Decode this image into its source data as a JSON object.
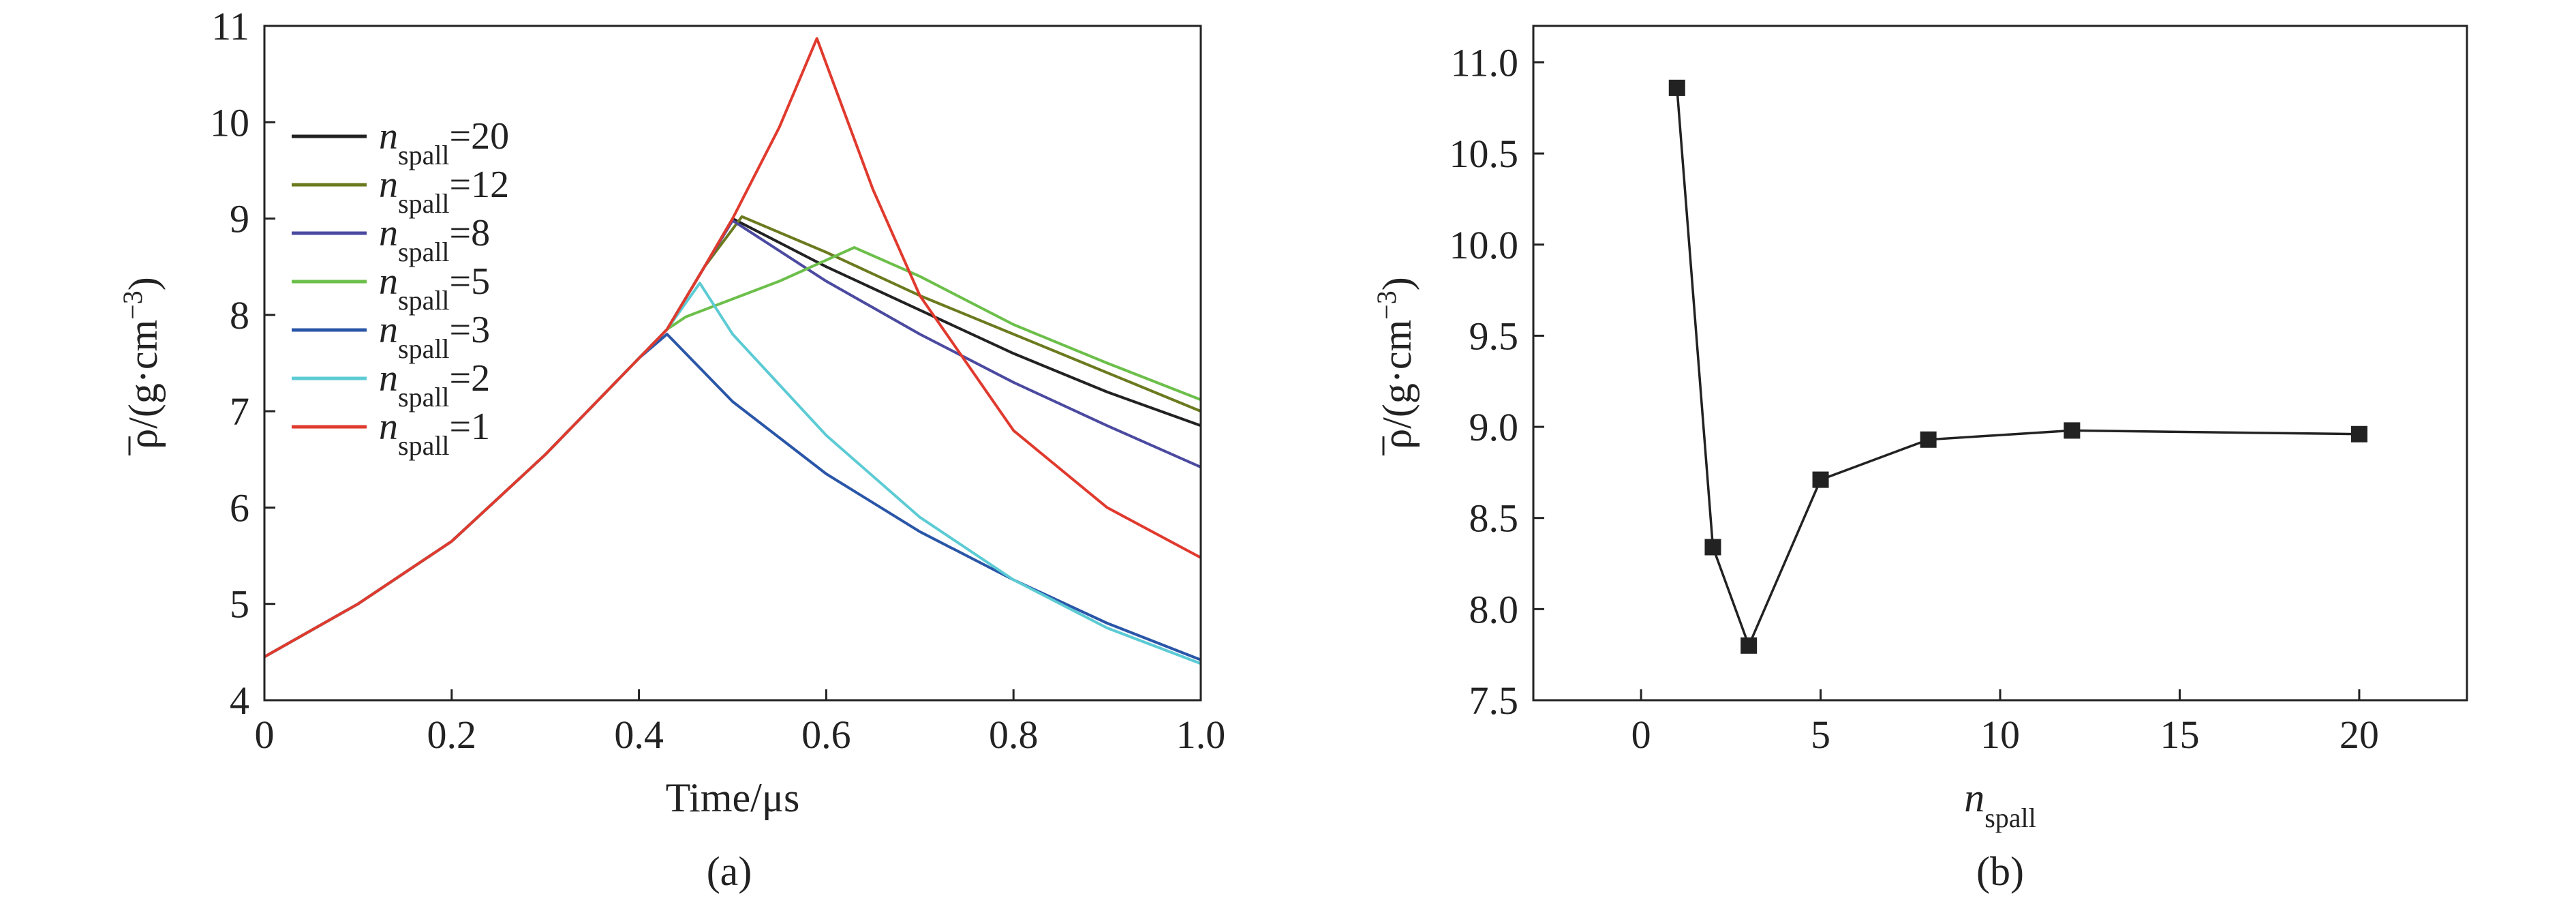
{
  "panels": [
    {
      "label": "(a)"
    },
    {
      "label": "(b)"
    }
  ],
  "chart_data": [
    {
      "type": "line",
      "xlabel": "Time/μs",
      "ylabel": "ρ/(g·cm⁻³)",
      "ylabel_parts": {
        "symbol": "ρ",
        "unit_open": "/(g·cm",
        "exponent": "−3",
        "unit_close": ")"
      },
      "xlim": [
        0,
        1.0
      ],
      "ylim": [
        4,
        11
      ],
      "xticks": [
        "0",
        "0.2",
        "0.4",
        "0.6",
        "0.8",
        "1.0"
      ],
      "xtick_values": [
        0,
        0.2,
        0.4,
        0.6,
        0.8,
        1.0
      ],
      "yticks": [
        "4",
        "5",
        "6",
        "7",
        "8",
        "9",
        "10",
        "11"
      ],
      "ytick_values": [
        4,
        5,
        6,
        7,
        8,
        9,
        10,
        11
      ],
      "legend_position": "top-left",
      "series": [
        {
          "legend_symbol": "n",
          "legend_sub": "spall",
          "legend_value": "=20",
          "color": "#222222",
          "points": [
            [
              0,
              4.45
            ],
            [
              0.1,
              5.0
            ],
            [
              0.2,
              5.65
            ],
            [
              0.3,
              6.55
            ],
            [
              0.4,
              7.55
            ],
            [
              0.43,
              7.85
            ],
            [
              0.47,
              8.5
            ],
            [
              0.5,
              9.0
            ],
            [
              0.6,
              8.5
            ],
            [
              0.7,
              8.05
            ],
            [
              0.8,
              7.6
            ],
            [
              0.9,
              7.2
            ],
            [
              1.0,
              6.85
            ]
          ]
        },
        {
          "legend_symbol": "n",
          "legend_sub": "spall",
          "legend_value": "=12",
          "color": "#6b7a1e",
          "points": [
            [
              0,
              4.45
            ],
            [
              0.1,
              5.0
            ],
            [
              0.2,
              5.65
            ],
            [
              0.3,
              6.55
            ],
            [
              0.4,
              7.55
            ],
            [
              0.43,
              7.85
            ],
            [
              0.47,
              8.5
            ],
            [
              0.51,
              9.02
            ],
            [
              0.6,
              8.65
            ],
            [
              0.7,
              8.2
            ],
            [
              0.8,
              7.8
            ],
            [
              0.9,
              7.4
            ],
            [
              1.0,
              7.0
            ]
          ]
        },
        {
          "legend_symbol": "n",
          "legend_sub": "spall",
          "legend_value": "=8",
          "color": "#4b4aa0",
          "points": [
            [
              0,
              4.45
            ],
            [
              0.1,
              5.0
            ],
            [
              0.2,
              5.65
            ],
            [
              0.3,
              6.55
            ],
            [
              0.4,
              7.55
            ],
            [
              0.43,
              7.85
            ],
            [
              0.47,
              8.5
            ],
            [
              0.5,
              8.98
            ],
            [
              0.6,
              8.35
            ],
            [
              0.7,
              7.8
            ],
            [
              0.8,
              7.3
            ],
            [
              0.9,
              6.85
            ],
            [
              1.0,
              6.42
            ]
          ]
        },
        {
          "legend_symbol": "n",
          "legend_sub": "spall",
          "legend_value": "=5",
          "color": "#6cbf4a",
          "points": [
            [
              0,
              4.45
            ],
            [
              0.1,
              5.0
            ],
            [
              0.2,
              5.65
            ],
            [
              0.3,
              6.55
            ],
            [
              0.4,
              7.55
            ],
            [
              0.43,
              7.85
            ],
            [
              0.45,
              7.98
            ],
            [
              0.55,
              8.35
            ],
            [
              0.63,
              8.7
            ],
            [
              0.7,
              8.4
            ],
            [
              0.8,
              7.9
            ],
            [
              0.9,
              7.5
            ],
            [
              1.0,
              7.12
            ]
          ]
        },
        {
          "legend_symbol": "n",
          "legend_sub": "spall",
          "legend_value": "=3",
          "color": "#2a56a8",
          "points": [
            [
              0,
              4.45
            ],
            [
              0.1,
              5.0
            ],
            [
              0.2,
              5.65
            ],
            [
              0.3,
              6.55
            ],
            [
              0.4,
              7.55
            ],
            [
              0.43,
              7.8
            ],
            [
              0.5,
              7.1
            ],
            [
              0.6,
              6.35
            ],
            [
              0.7,
              5.75
            ],
            [
              0.8,
              5.25
            ],
            [
              0.9,
              4.8
            ],
            [
              1.0,
              4.42
            ]
          ]
        },
        {
          "legend_symbol": "n",
          "legend_sub": "spall",
          "legend_value": "=2",
          "color": "#5ccbd4",
          "points": [
            [
              0,
              4.45
            ],
            [
              0.1,
              5.0
            ],
            [
              0.2,
              5.65
            ],
            [
              0.3,
              6.55
            ],
            [
              0.4,
              7.55
            ],
            [
              0.43,
              7.85
            ],
            [
              0.465,
              8.33
            ],
            [
              0.5,
              7.8
            ],
            [
              0.6,
              6.75
            ],
            [
              0.7,
              5.9
            ],
            [
              0.8,
              5.25
            ],
            [
              0.9,
              4.75
            ],
            [
              1.0,
              4.38
            ]
          ]
        },
        {
          "legend_symbol": "n",
          "legend_sub": "spall",
          "legend_value": "=1",
          "color": "#e03a2e",
          "points": [
            [
              0,
              4.45
            ],
            [
              0.1,
              5.0
            ],
            [
              0.2,
              5.65
            ],
            [
              0.3,
              6.55
            ],
            [
              0.4,
              7.55
            ],
            [
              0.43,
              7.85
            ],
            [
              0.47,
              8.5
            ],
            [
              0.5,
              9.0
            ],
            [
              0.55,
              9.95
            ],
            [
              0.59,
              10.87
            ],
            [
              0.65,
              9.3
            ],
            [
              0.7,
              8.2
            ],
            [
              0.8,
              6.8
            ],
            [
              0.9,
              6.0
            ],
            [
              1.0,
              5.48
            ]
          ]
        }
      ]
    },
    {
      "type": "line",
      "marker": "square",
      "xlabel_parts": {
        "symbol": "n",
        "sub": "spall"
      },
      "ylabel_parts": {
        "symbol": "ρ",
        "unit_open": "/(g·cm",
        "exponent": "−3",
        "unit_close": ")"
      },
      "xlim": [
        -3,
        23
      ],
      "ylim": [
        7.5,
        11.2
      ],
      "xticks": [
        "0",
        "5",
        "10",
        "15",
        "20"
      ],
      "xtick_values": [
        0,
        5,
        10,
        15,
        20
      ],
      "yticks": [
        "7.5",
        "8.0",
        "8.5",
        "9.0",
        "9.5",
        "10.0",
        "10.5",
        "11.0"
      ],
      "ytick_values": [
        7.5,
        8.0,
        8.5,
        9.0,
        9.5,
        10.0,
        10.5,
        11.0
      ],
      "color": "#222222",
      "x": [
        1,
        2,
        3,
        5,
        8,
        12,
        20
      ],
      "y": [
        10.86,
        8.34,
        7.8,
        8.71,
        8.93,
        8.98,
        8.96
      ]
    }
  ]
}
